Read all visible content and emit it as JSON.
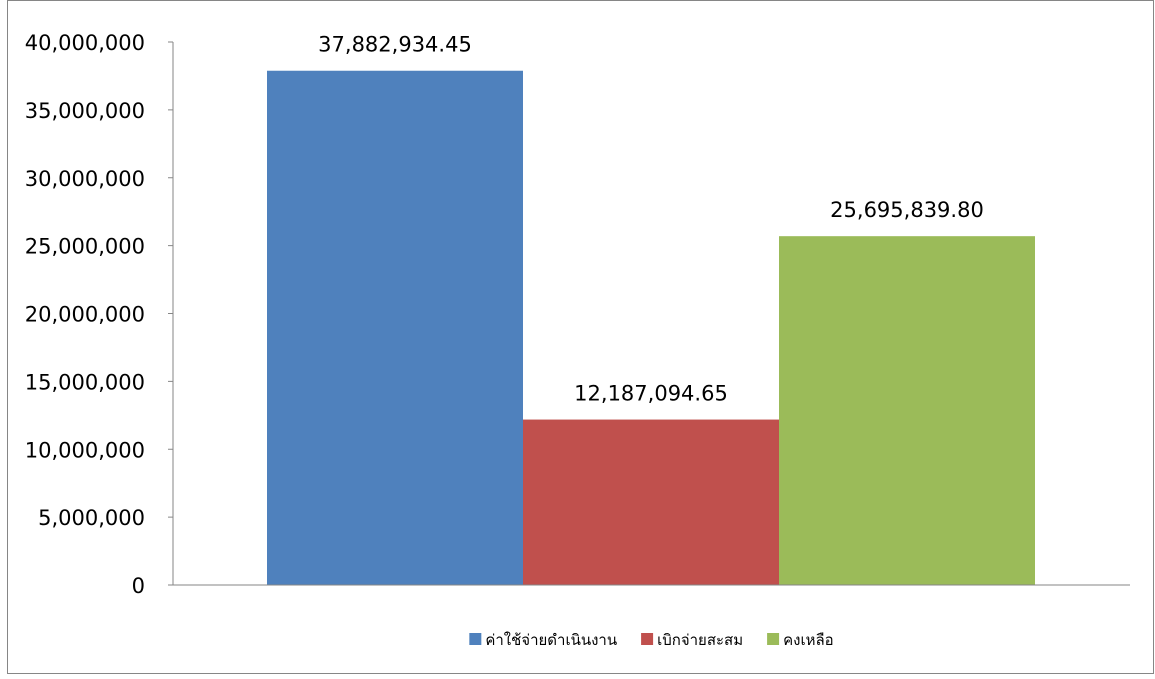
{
  "chart_data": {
    "type": "bar",
    "title": "",
    "xlabel": "",
    "ylabel": "",
    "ylim": [
      0,
      40000000
    ],
    "ytick_step": 5000000,
    "yticks": [
      "0",
      "5,000,000",
      "10,000,000",
      "15,000,000",
      "20,000,000",
      "25,000,000",
      "30,000,000",
      "35,000,000",
      "40,000,000"
    ],
    "grid": false,
    "legend_position": "bottom",
    "series": [
      {
        "name": "ค่าใช้จ่ายดำเนินงาน",
        "value": 37882934.45,
        "label": "37,882,934.45",
        "color": "#4F81BD"
      },
      {
        "name": "เบิกจ่ายสะสม",
        "value": 12187094.65,
        "label": "12,187,094.65",
        "color": "#C0504D"
      },
      {
        "name": "คงเหลือ",
        "value": 25695839.8,
        "label": "25,695,839.80",
        "color": "#9BBB59"
      }
    ]
  }
}
